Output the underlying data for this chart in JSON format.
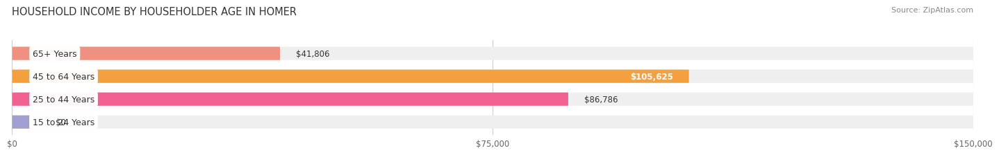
{
  "title": "HOUSEHOLD INCOME BY HOUSEHOLDER AGE IN HOMER",
  "source": "Source: ZipAtlas.com",
  "categories": [
    "15 to 24 Years",
    "25 to 44 Years",
    "45 to 64 Years",
    "65+ Years"
  ],
  "values": [
    0,
    86786,
    105625,
    41806
  ],
  "max_value": 150000,
  "bar_colors": [
    "#a0a0d0",
    "#f06090",
    "#f5a040",
    "#f09080"
  ],
  "bar_bg_color": "#efefef",
  "label_colors": [
    "#333333",
    "#333333",
    "#ffffff",
    "#333333"
  ],
  "value_labels": [
    "$0",
    "$86,786",
    "$105,625",
    "$41,806"
  ],
  "x_ticks": [
    0,
    75000,
    150000
  ],
  "x_tick_labels": [
    "$0",
    "$75,000",
    "$150,000"
  ],
  "bar_height": 0.58,
  "fig_bg_color": "#ffffff",
  "title_fontsize": 10.5,
  "label_fontsize": 9,
  "value_fontsize": 8.5,
  "source_fontsize": 8
}
